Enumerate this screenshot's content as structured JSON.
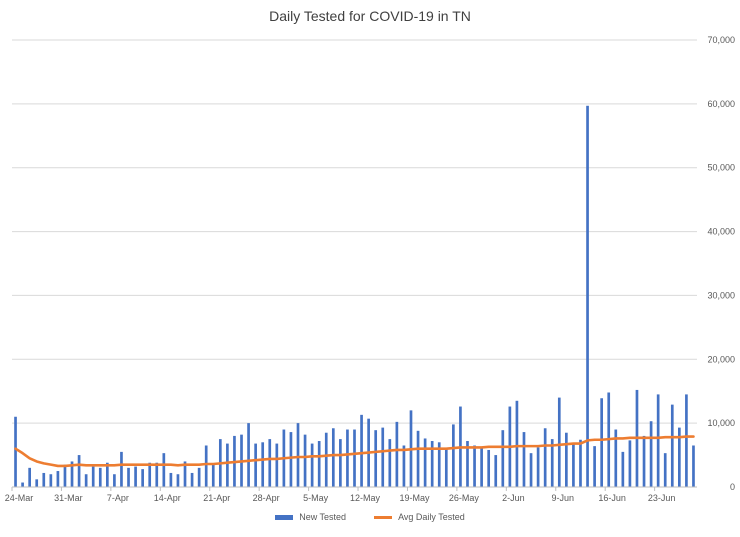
{
  "chart_data": {
    "type": "bar",
    "title": "Daily Tested for COVID-19 in TN",
    "xlabel": "",
    "ylabel": "",
    "ylim": [
      0,
      70000
    ],
    "y_ticks": [
      "0",
      "10,000",
      "20,000",
      "30,000",
      "40,000",
      "50,000",
      "60,000",
      "70,000"
    ],
    "y_axis_side": "right",
    "grid": true,
    "legend_position": "bottom",
    "x_tick_labels": [
      "24-Mar",
      "31-Mar",
      "7-Apr",
      "14-Apr",
      "21-Apr",
      "28-Apr",
      "5-May",
      "12-May",
      "19-May",
      "26-May",
      "2-Jun",
      "9-Jun",
      "16-Jun",
      "23-Jun"
    ],
    "x_start": "24-Mar",
    "x_end": "27-Jun",
    "series": [
      {
        "name": "New Tested",
        "kind": "bar",
        "color": "#4472C4",
        "values": [
          11000,
          700,
          3000,
          1200,
          2200,
          2000,
          2500,
          3500,
          4000,
          5000,
          2000,
          3200,
          3000,
          3800,
          2000,
          5500,
          3000,
          3200,
          2800,
          3800,
          3800,
          5300,
          2200,
          2000,
          4000,
          2200,
          3000,
          6500,
          3500,
          7500,
          6800,
          8000,
          8200,
          10000,
          6800,
          7000,
          7500,
          6800,
          9000,
          8600,
          10000,
          8200,
          6800,
          7200,
          8500,
          9200,
          7500,
          9000,
          9000,
          11300,
          10700,
          8900,
          9300,
          7500,
          10200,
          6500,
          12000,
          8800,
          7600,
          7200,
          7000,
          6000,
          9800,
          12600,
          7200,
          6500,
          6200,
          5800,
          5000,
          8900,
          12600,
          13500,
          8600,
          5300,
          6200,
          9200,
          7500,
          14000,
          8500,
          6700,
          7400,
          59700,
          6400,
          13900,
          14800,
          9000,
          5500,
          7300,
          15200,
          8000,
          10300,
          14500,
          5300,
          12900,
          9300,
          14500,
          6500
        ],
        "line_color": "#ED7D31"
      },
      {
        "name": "Avg Daily Tested",
        "kind": "line",
        "color": "#ED7D31",
        "values": [
          6000,
          5300,
          4500,
          4000,
          3700,
          3500,
          3300,
          3300,
          3400,
          3500,
          3400,
          3400,
          3400,
          3400,
          3400,
          3500,
          3500,
          3500,
          3500,
          3500,
          3500,
          3500,
          3500,
          3400,
          3500,
          3500,
          3500,
          3600,
          3600,
          3700,
          3800,
          3900,
          4000,
          4100,
          4200,
          4300,
          4400,
          4400,
          4500,
          4600,
          4700,
          4700,
          4800,
          4800,
          4900,
          5000,
          5000,
          5100,
          5200,
          5300,
          5400,
          5500,
          5600,
          5700,
          5800,
          5800,
          5900,
          6000,
          6000,
          6000,
          6000,
          6000,
          6100,
          6200,
          6200,
          6200,
          6200,
          6300,
          6300,
          6300,
          6300,
          6400,
          6400,
          6400,
          6400,
          6500,
          6500,
          6600,
          6700,
          6800,
          6800,
          7300,
          7400,
          7400,
          7500,
          7600,
          7600,
          7700,
          7700,
          7700,
          7700,
          7700,
          7800,
          7800,
          7800,
          7900,
          7900
        ]
      }
    ]
  }
}
